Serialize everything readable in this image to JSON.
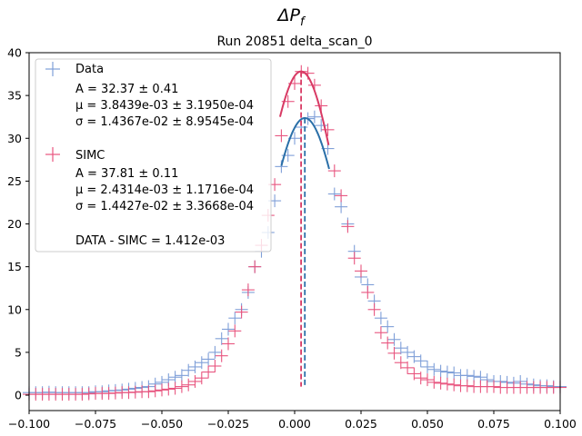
{
  "chart_data": {
    "type": "scatter",
    "suptitle_main": "ΔP",
    "suptitle_sub": "f",
    "title": "Run 20851 delta_scan_0",
    "xlabel": "",
    "ylabel": "",
    "xlim": [
      -0.1,
      0.1
    ],
    "ylim": [
      -1.8,
      40
    ],
    "x_ticks": [
      -0.1,
      -0.075,
      -0.05,
      -0.025,
      0.0,
      0.025,
      0.05,
      0.075,
      0.1
    ],
    "x_tick_labels": [
      "−0.100",
      "−0.075",
      "−0.050",
      "−0.025",
      "0.000",
      "0.025",
      "0.050",
      "0.075",
      "0.100"
    ],
    "y_ticks": [
      0,
      5,
      10,
      15,
      20,
      25,
      30,
      35,
      40
    ],
    "y_tick_labels": [
      "0",
      "5",
      "10",
      "15",
      "20",
      "25",
      "30",
      "35",
      "40"
    ],
    "grid": false,
    "legend_position": "top-left",
    "series": [
      {
        "name": "Data",
        "color": "#7f9fd8",
        "marker": "plus",
        "fit_color": "#2a6fa8",
        "fit": {
          "A": 32.37,
          "mu": 0.0038439,
          "sigma": 0.014367,
          "range": [
            -0.005,
            0.013
          ]
        },
        "stats": [
          "A = 32.37 ± 0.41",
          "μ = 3.8439e-03 ± 3.1950e-04",
          "σ = 1.4367e-02 ± 8.9545e-04"
        ],
        "points": [
          [
            -0.1,
            0.3
          ],
          [
            -0.0975,
            0.3
          ],
          [
            -0.095,
            0.3
          ],
          [
            -0.0925,
            0.35
          ],
          [
            -0.09,
            0.3
          ],
          [
            -0.0875,
            0.3
          ],
          [
            -0.085,
            0.3
          ],
          [
            -0.0825,
            0.3
          ],
          [
            -0.08,
            0.3
          ],
          [
            -0.0775,
            0.3
          ],
          [
            -0.075,
            0.4
          ],
          [
            -0.0725,
            0.4
          ],
          [
            -0.07,
            0.5
          ],
          [
            -0.0675,
            0.55
          ],
          [
            -0.065,
            0.6
          ],
          [
            -0.0625,
            0.7
          ],
          [
            -0.06,
            0.8
          ],
          [
            -0.0575,
            0.9
          ],
          [
            -0.055,
            1.0
          ],
          [
            -0.0525,
            1.3
          ],
          [
            -0.05,
            1.5
          ],
          [
            -0.0475,
            1.8
          ],
          [
            -0.045,
            2.1
          ],
          [
            -0.0425,
            2.3
          ],
          [
            -0.04,
            2.9
          ],
          [
            -0.0375,
            3.3
          ],
          [
            -0.035,
            3.8
          ],
          [
            -0.0325,
            4.2
          ],
          [
            -0.03,
            5.0
          ],
          [
            -0.0275,
            6.6
          ],
          [
            -0.025,
            7.7
          ],
          [
            -0.0225,
            9.0
          ],
          [
            -0.02,
            10.0
          ],
          [
            -0.0175,
            12.0
          ],
          [
            -0.015,
            15.0
          ],
          [
            -0.0125,
            16.8
          ],
          [
            -0.01,
            19.0
          ],
          [
            -0.0075,
            22.7
          ],
          [
            -0.005,
            26.7
          ],
          [
            -0.0025,
            28.0
          ],
          [
            0.0,
            30.0
          ],
          [
            0.0025,
            31.3
          ],
          [
            0.005,
            32.3
          ],
          [
            0.0075,
            32.5
          ],
          [
            0.01,
            31.5
          ],
          [
            0.0125,
            28.8
          ],
          [
            0.015,
            23.5
          ],
          [
            0.0175,
            22.0
          ],
          [
            0.02,
            20.0
          ],
          [
            0.0225,
            16.8
          ],
          [
            0.025,
            13.8
          ],
          [
            0.0275,
            12.9
          ],
          [
            0.03,
            11.0
          ],
          [
            0.0325,
            9.0
          ],
          [
            0.035,
            8.0
          ],
          [
            0.0375,
            6.5
          ],
          [
            0.04,
            5.5
          ],
          [
            0.0425,
            5.0
          ],
          [
            0.045,
            4.5
          ],
          [
            0.0475,
            4.0
          ],
          [
            0.05,
            3.3
          ],
          [
            0.0525,
            3.0
          ],
          [
            0.055,
            2.8
          ],
          [
            0.0575,
            2.7
          ],
          [
            0.06,
            2.6
          ],
          [
            0.0625,
            2.3
          ],
          [
            0.065,
            2.3
          ],
          [
            0.0675,
            2.2
          ],
          [
            0.07,
            2.1
          ],
          [
            0.0725,
            1.8
          ],
          [
            0.075,
            1.6
          ],
          [
            0.0775,
            1.6
          ],
          [
            0.08,
            1.5
          ],
          [
            0.0825,
            1.4
          ],
          [
            0.085,
            1.6
          ],
          [
            0.0875,
            1.3
          ],
          [
            0.09,
            1.2
          ],
          [
            0.0925,
            1.1
          ],
          [
            0.095,
            1.1
          ],
          [
            0.0975,
            1.0
          ],
          [
            0.1,
            1.0
          ]
        ]
      },
      {
        "name": "SIMC",
        "color": "#e8557f",
        "marker": "plus",
        "fit_color": "#d83a64",
        "fit": {
          "A": 37.81,
          "mu": 0.0024314,
          "sigma": 0.014427,
          "range": [
            -0.0055,
            0.0128
          ]
        },
        "stats": [
          "A = 37.81 ± 0.11",
          "μ = 2.4314e-03 ± 1.1716e-04",
          "σ = 1.4427e-02 ± 3.3668e-04"
        ],
        "points": [
          [
            -0.1,
            0.1
          ],
          [
            -0.0975,
            0.1
          ],
          [
            -0.095,
            0.1
          ],
          [
            -0.0925,
            0.1
          ],
          [
            -0.09,
            0.1
          ],
          [
            -0.0875,
            0.1
          ],
          [
            -0.085,
            0.1
          ],
          [
            -0.0825,
            0.1
          ],
          [
            -0.08,
            0.1
          ],
          [
            -0.0775,
            0.15
          ],
          [
            -0.075,
            0.2
          ],
          [
            -0.0725,
            0.2
          ],
          [
            -0.07,
            0.2
          ],
          [
            -0.0675,
            0.25
          ],
          [
            -0.065,
            0.3
          ],
          [
            -0.0625,
            0.3
          ],
          [
            -0.06,
            0.35
          ],
          [
            -0.0575,
            0.4
          ],
          [
            -0.055,
            0.4
          ],
          [
            -0.0525,
            0.5
          ],
          [
            -0.05,
            0.6
          ],
          [
            -0.0475,
            0.7
          ],
          [
            -0.045,
            0.8
          ],
          [
            -0.0425,
            1.0
          ],
          [
            -0.04,
            1.2
          ],
          [
            -0.0375,
            1.6
          ],
          [
            -0.035,
            2.0
          ],
          [
            -0.0325,
            2.7
          ],
          [
            -0.03,
            3.4
          ],
          [
            -0.0275,
            4.6
          ],
          [
            -0.025,
            6.0
          ],
          [
            -0.0225,
            7.5
          ],
          [
            -0.02,
            9.7
          ],
          [
            -0.0175,
            12.3
          ],
          [
            -0.015,
            15.0
          ],
          [
            -0.0125,
            17.5
          ],
          [
            -0.01,
            21.0
          ],
          [
            -0.0075,
            24.6
          ],
          [
            -0.005,
            30.3
          ],
          [
            -0.0025,
            34.3
          ],
          [
            0.0,
            36.4
          ],
          [
            0.0025,
            37.8
          ],
          [
            0.005,
            37.6
          ],
          [
            0.0075,
            36.2
          ],
          [
            0.01,
            33.8
          ],
          [
            0.0125,
            31.0
          ],
          [
            0.015,
            26.2
          ],
          [
            0.0175,
            23.3
          ],
          [
            0.02,
            19.7
          ],
          [
            0.0225,
            16.0
          ],
          [
            0.025,
            14.5
          ],
          [
            0.0275,
            12.0
          ],
          [
            0.03,
            10.0
          ],
          [
            0.0325,
            7.3
          ],
          [
            0.035,
            6.1
          ],
          [
            0.0375,
            4.9
          ],
          [
            0.04,
            3.8
          ],
          [
            0.0425,
            3.2
          ],
          [
            0.045,
            2.5
          ],
          [
            0.0475,
            2.0
          ],
          [
            0.05,
            1.8
          ],
          [
            0.0525,
            1.5
          ],
          [
            0.055,
            1.4
          ],
          [
            0.0575,
            1.3
          ],
          [
            0.06,
            1.2
          ],
          [
            0.0625,
            1.1
          ],
          [
            0.065,
            1.1
          ],
          [
            0.0675,
            1.0
          ],
          [
            0.07,
            1.0
          ],
          [
            0.0725,
            1.0
          ],
          [
            0.075,
            1.0
          ],
          [
            0.0775,
            0.9
          ],
          [
            0.08,
            0.9
          ],
          [
            0.0825,
            0.9
          ],
          [
            0.085,
            0.9
          ],
          [
            0.0875,
            0.9
          ],
          [
            0.09,
            0.9
          ],
          [
            0.0925,
            0.9
          ],
          [
            0.095,
            0.9
          ],
          [
            0.0975,
            0.9
          ],
          [
            0.1,
            0.9
          ]
        ]
      }
    ],
    "diff_label": "DATA - SIMC = 1.412e-03"
  }
}
